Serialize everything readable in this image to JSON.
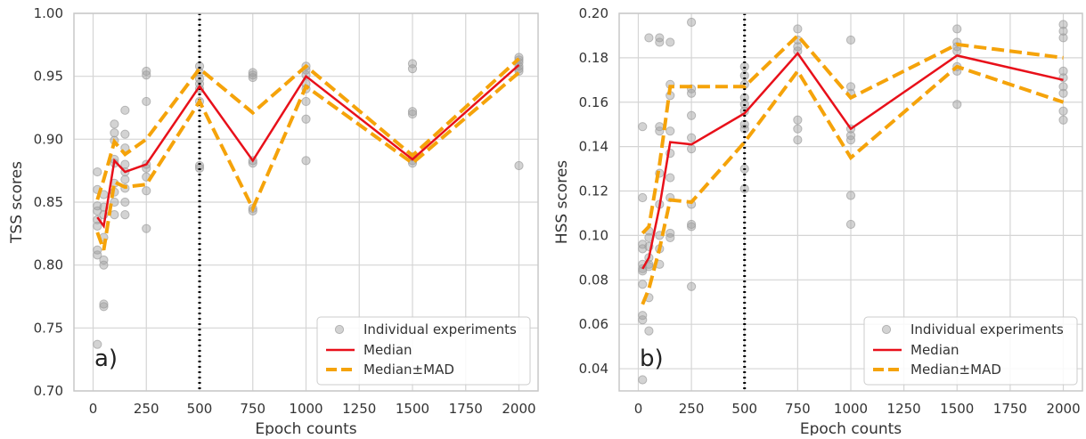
{
  "colors": {
    "individual": "#9e9e9e",
    "median": "#e8101a",
    "mad": "#f5a30a",
    "vline": "#000000",
    "grid": "#d5d5d5",
    "frame": "#c8c8c8"
  },
  "legend": {
    "individual": "Individual experiments",
    "median": "Median",
    "mad": "Median±MAD",
    "placement": "lower-right"
  },
  "chart_data": [
    {
      "type": "line",
      "panel_label": "a)",
      "xlabel": "Epoch counts",
      "ylabel": "TSS scores",
      "xlim": [
        -90,
        2090
      ],
      "ylim": [
        0.7,
        1.0
      ],
      "xticks": [
        0,
        250,
        500,
        750,
        1000,
        1250,
        1500,
        1750,
        2000
      ],
      "yticks": [
        0.7,
        0.75,
        0.8,
        0.85,
        0.9,
        0.95,
        1.0
      ],
      "ytick_labels": [
        "0.70",
        "0.75",
        "0.80",
        "0.85",
        "0.90",
        "0.95",
        "1.00"
      ],
      "grid": true,
      "vline_x": 500,
      "x": [
        20,
        50,
        100,
        150,
        250,
        500,
        750,
        1000,
        1500,
        2000
      ],
      "median": [
        0.838,
        0.831,
        0.883,
        0.874,
        0.88,
        0.942,
        0.883,
        0.95,
        0.884,
        0.959
      ],
      "median_plus_mad": [
        0.852,
        0.868,
        0.898,
        0.888,
        0.9,
        0.956,
        0.921,
        0.958,
        0.887,
        0.964
      ],
      "median_minus_mad": [
        0.826,
        0.812,
        0.866,
        0.862,
        0.864,
        0.93,
        0.845,
        0.942,
        0.881,
        0.953
      ],
      "individual": [
        [
          20,
          0.874
        ],
        [
          20,
          0.86
        ],
        [
          20,
          0.847
        ],
        [
          20,
          0.843
        ],
        [
          20,
          0.836
        ],
        [
          20,
          0.831
        ],
        [
          20,
          0.812
        ],
        [
          20,
          0.808
        ],
        [
          20,
          0.737
        ],
        [
          50,
          0.856
        ],
        [
          50,
          0.846
        ],
        [
          50,
          0.84
        ],
        [
          50,
          0.822
        ],
        [
          50,
          0.804
        ],
        [
          50,
          0.8
        ],
        [
          50,
          0.769
        ],
        [
          50,
          0.767
        ],
        [
          100,
          0.912
        ],
        [
          100,
          0.905
        ],
        [
          100,
          0.899
        ],
        [
          100,
          0.884
        ],
        [
          100,
          0.881
        ],
        [
          100,
          0.865
        ],
        [
          100,
          0.858
        ],
        [
          100,
          0.85
        ],
        [
          100,
          0.84
        ],
        [
          150,
          0.923
        ],
        [
          150,
          0.904
        ],
        [
          150,
          0.893
        ],
        [
          150,
          0.88
        ],
        [
          150,
          0.874
        ],
        [
          150,
          0.868
        ],
        [
          150,
          0.861
        ],
        [
          150,
          0.85
        ],
        [
          150,
          0.84
        ],
        [
          250,
          0.954
        ],
        [
          250,
          0.951
        ],
        [
          250,
          0.93
        ],
        [
          250,
          0.88
        ],
        [
          250,
          0.877
        ],
        [
          250,
          0.87
        ],
        [
          250,
          0.859
        ],
        [
          250,
          0.829
        ],
        [
          500,
          0.958
        ],
        [
          500,
          0.953
        ],
        [
          500,
          0.948
        ],
        [
          500,
          0.944
        ],
        [
          500,
          0.94
        ],
        [
          500,
          0.93
        ],
        [
          500,
          0.879
        ],
        [
          500,
          0.877
        ],
        [
          750,
          0.953
        ],
        [
          750,
          0.951
        ],
        [
          750,
          0.949
        ],
        [
          750,
          0.883
        ],
        [
          750,
          0.881
        ],
        [
          750,
          0.845
        ],
        [
          750,
          0.843
        ],
        [
          1000,
          0.958
        ],
        [
          1000,
          0.955
        ],
        [
          1000,
          0.951
        ],
        [
          1000,
          0.944
        ],
        [
          1000,
          0.94
        ],
        [
          1000,
          0.93
        ],
        [
          1000,
          0.916
        ],
        [
          1000,
          0.883
        ],
        [
          1500,
          0.96
        ],
        [
          1500,
          0.956
        ],
        [
          1500,
          0.922
        ],
        [
          1500,
          0.92
        ],
        [
          1500,
          0.886
        ],
        [
          1500,
          0.883
        ],
        [
          1500,
          0.881
        ],
        [
          2000,
          0.965
        ],
        [
          2000,
          0.963
        ],
        [
          2000,
          0.961
        ],
        [
          2000,
          0.958
        ],
        [
          2000,
          0.956
        ],
        [
          2000,
          0.954
        ],
        [
          2000,
          0.879
        ]
      ]
    },
    {
      "type": "line",
      "panel_label": "b)",
      "xlabel": "Epoch counts",
      "ylabel": "HSS scores",
      "xlim": [
        -90,
        2090
      ],
      "ylim": [
        0.03,
        0.2
      ],
      "xticks": [
        0,
        250,
        500,
        750,
        1000,
        1250,
        1500,
        1750,
        2000
      ],
      "yticks": [
        0.04,
        0.06,
        0.08,
        0.1,
        0.12,
        0.14,
        0.16,
        0.18,
        0.2
      ],
      "ytick_labels": [
        "0.04",
        "0.06",
        "0.08",
        "0.10",
        "0.12",
        "0.14",
        "0.16",
        "0.18",
        "0.20"
      ],
      "grid": true,
      "vline_x": 500,
      "x": [
        20,
        50,
        100,
        150,
        250,
        500,
        750,
        1000,
        1500,
        2000
      ],
      "median": [
        0.085,
        0.09,
        0.113,
        0.142,
        0.141,
        0.155,
        0.182,
        0.148,
        0.181,
        0.17
      ],
      "median_plus_mad": [
        0.101,
        0.104,
        0.132,
        0.167,
        0.167,
        0.167,
        0.19,
        0.162,
        0.186,
        0.18
      ],
      "median_minus_mad": [
        0.069,
        0.076,
        0.094,
        0.116,
        0.115,
        0.142,
        0.174,
        0.135,
        0.176,
        0.16
      ],
      "individual": [
        [
          20,
          0.149
        ],
        [
          20,
          0.117
        ],
        [
          20,
          0.096
        ],
        [
          20,
          0.094
        ],
        [
          20,
          0.087
        ],
        [
          20,
          0.085
        ],
        [
          20,
          0.084
        ],
        [
          20,
          0.078
        ],
        [
          20,
          0.064
        ],
        [
          20,
          0.062
        ],
        [
          20,
          0.035
        ],
        [
          50,
          0.189
        ],
        [
          50,
          0.102
        ],
        [
          50,
          0.099
        ],
        [
          50,
          0.095
        ],
        [
          50,
          0.09
        ],
        [
          50,
          0.087
        ],
        [
          50,
          0.086
        ],
        [
          50,
          0.072
        ],
        [
          50,
          0.057
        ],
        [
          100,
          0.189
        ],
        [
          100,
          0.187
        ],
        [
          100,
          0.149
        ],
        [
          100,
          0.147
        ],
        [
          100,
          0.128
        ],
        [
          100,
          0.114
        ],
        [
          100,
          0.1
        ],
        [
          100,
          0.094
        ],
        [
          100,
          0.087
        ],
        [
          150,
          0.187
        ],
        [
          150,
          0.168
        ],
        [
          150,
          0.163
        ],
        [
          150,
          0.147
        ],
        [
          150,
          0.137
        ],
        [
          150,
          0.126
        ],
        [
          150,
          0.117
        ],
        [
          150,
          0.101
        ],
        [
          150,
          0.099
        ],
        [
          250,
          0.196
        ],
        [
          250,
          0.166
        ],
        [
          250,
          0.164
        ],
        [
          250,
          0.154
        ],
        [
          250,
          0.144
        ],
        [
          250,
          0.139
        ],
        [
          250,
          0.114
        ],
        [
          250,
          0.105
        ],
        [
          250,
          0.104
        ],
        [
          250,
          0.077
        ],
        [
          500,
          0.176
        ],
        [
          500,
          0.172
        ],
        [
          500,
          0.168
        ],
        [
          500,
          0.162
        ],
        [
          500,
          0.159
        ],
        [
          500,
          0.156
        ],
        [
          500,
          0.15
        ],
        [
          500,
          0.148
        ],
        [
          500,
          0.13
        ],
        [
          500,
          0.121
        ],
        [
          750,
          0.193
        ],
        [
          750,
          0.188
        ],
        [
          750,
          0.185
        ],
        [
          750,
          0.183
        ],
        [
          750,
          0.152
        ],
        [
          750,
          0.148
        ],
        [
          750,
          0.143
        ],
        [
          1000,
          0.188
        ],
        [
          1000,
          0.167
        ],
        [
          1000,
          0.164
        ],
        [
          1000,
          0.148
        ],
        [
          1000,
          0.145
        ],
        [
          1000,
          0.143
        ],
        [
          1000,
          0.118
        ],
        [
          1000,
          0.105
        ],
        [
          1500,
          0.193
        ],
        [
          1500,
          0.187
        ],
        [
          1500,
          0.185
        ],
        [
          1500,
          0.183
        ],
        [
          1500,
          0.176
        ],
        [
          1500,
          0.174
        ],
        [
          1500,
          0.159
        ],
        [
          2000,
          0.195
        ],
        [
          2000,
          0.192
        ],
        [
          2000,
          0.189
        ],
        [
          2000,
          0.174
        ],
        [
          2000,
          0.171
        ],
        [
          2000,
          0.167
        ],
        [
          2000,
          0.164
        ],
        [
          2000,
          0.156
        ],
        [
          2000,
          0.152
        ]
      ]
    }
  ]
}
